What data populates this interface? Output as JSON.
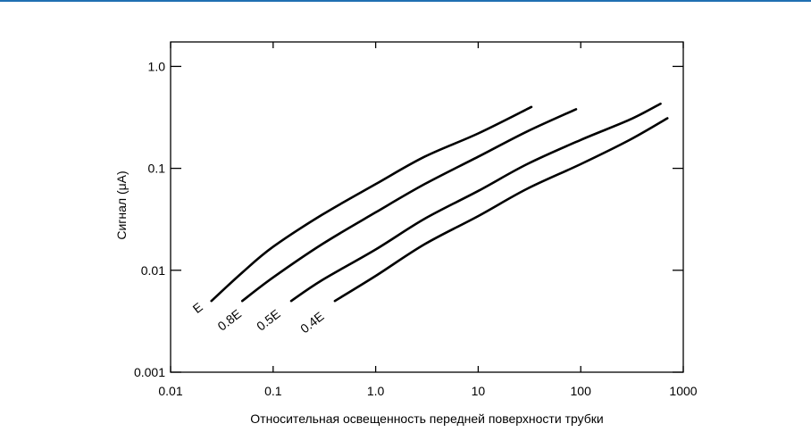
{
  "page": {
    "accent_color": "#1f6fb2"
  },
  "chart_data": {
    "type": "line",
    "title": "",
    "xlabel": "Относительная освещенность передней поверхности трубки",
    "ylabel": "Сигнал (μA)",
    "x_scale": "log",
    "y_scale": "log",
    "xlim": [
      0.01,
      1000
    ],
    "ylim": [
      0.001,
      1.0
    ],
    "x_ticks": [
      {
        "value": 0.01,
        "label": "0.01"
      },
      {
        "value": 0.1,
        "label": "0.1"
      },
      {
        "value": 1,
        "label": "1.0"
      },
      {
        "value": 10,
        "label": "10"
      },
      {
        "value": 100,
        "label": "100"
      },
      {
        "value": 1000,
        "label": "1000"
      }
    ],
    "y_ticks": [
      {
        "value": 0.001,
        "label": "0.001"
      },
      {
        "value": 0.01,
        "label": "0.01"
      },
      {
        "value": 0.1,
        "label": "0.1"
      },
      {
        "value": 1.0,
        "label": "1.0"
      }
    ],
    "grid": false,
    "series": [
      {
        "name": "E",
        "label_anchor": {
          "x": 0.021,
          "y": 0.0042
        },
        "points": [
          [
            0.025,
            0.005
          ],
          [
            0.05,
            0.0095
          ],
          [
            0.1,
            0.017
          ],
          [
            0.3,
            0.035
          ],
          [
            1,
            0.07
          ],
          [
            3,
            0.13
          ],
          [
            10,
            0.22
          ],
          [
            33,
            0.4
          ]
        ]
      },
      {
        "name": "0.8E",
        "label_anchor": {
          "x": 0.05,
          "y": 0.0036
        },
        "points": [
          [
            0.05,
            0.005
          ],
          [
            0.1,
            0.0085
          ],
          [
            0.3,
            0.018
          ],
          [
            1,
            0.037
          ],
          [
            3,
            0.07
          ],
          [
            10,
            0.13
          ],
          [
            30,
            0.23
          ],
          [
            90,
            0.38
          ]
        ]
      },
      {
        "name": "0.5E",
        "label_anchor": {
          "x": 0.12,
          "y": 0.0036
        },
        "points": [
          [
            0.15,
            0.005
          ],
          [
            0.3,
            0.008
          ],
          [
            1,
            0.016
          ],
          [
            3,
            0.032
          ],
          [
            10,
            0.06
          ],
          [
            30,
            0.11
          ],
          [
            100,
            0.19
          ],
          [
            300,
            0.3
          ],
          [
            600,
            0.43
          ]
        ]
      },
      {
        "name": "0.4E",
        "label_anchor": {
          "x": 0.32,
          "y": 0.0034
        },
        "points": [
          [
            0.4,
            0.005
          ],
          [
            1,
            0.0088
          ],
          [
            3,
            0.018
          ],
          [
            10,
            0.034
          ],
          [
            30,
            0.063
          ],
          [
            100,
            0.11
          ],
          [
            300,
            0.19
          ],
          [
            700,
            0.31
          ]
        ]
      }
    ]
  }
}
